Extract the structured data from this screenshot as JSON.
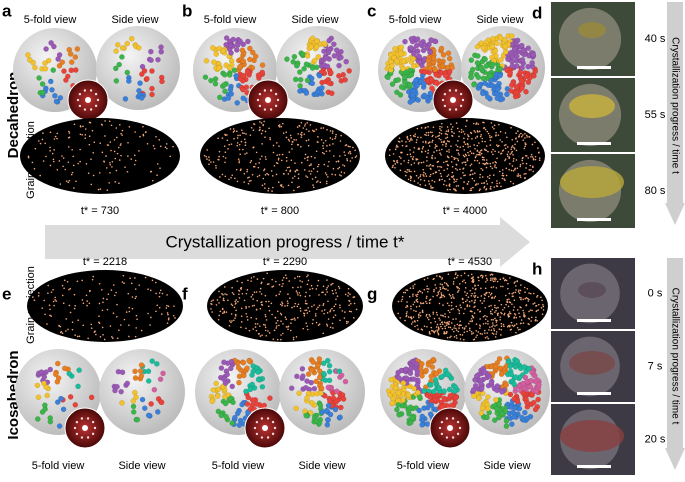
{
  "row_labels": {
    "top": "Decahedron",
    "bottom": "Icosahedron"
  },
  "projection_labels": [
    "Grain projection",
    "Grain projection"
  ],
  "main_arrow": "Crystallization progress / time t*",
  "panels": [
    {
      "letter": "a",
      "views": [
        "5-fold view",
        "Side view"
      ],
      "time": "t* = 730"
    },
    {
      "letter": "b",
      "views": [
        "5-fold view",
        "Side view"
      ],
      "time": "t* = 800"
    },
    {
      "letter": "c",
      "views": [
        "5-fold view",
        "Side view"
      ],
      "time": "t* = 4000"
    },
    {
      "letter": "e",
      "views": [
        "5-fold view",
        "Side view"
      ],
      "time": "t* = 2218"
    },
    {
      "letter": "f",
      "views": [
        "5-fold view",
        "Side view"
      ],
      "time": "t* = 2290"
    },
    {
      "letter": "g",
      "views": [
        "5-fold view",
        "Side view"
      ],
      "time": "t* = 4530"
    }
  ],
  "micro": [
    {
      "letter": "d",
      "times": [
        "40 s",
        "55 s",
        "80 s"
      ],
      "arrow": "Crystallization progress / time t"
    },
    {
      "letter": "h",
      "times": [
        "0 s",
        "7 s",
        "20 s"
      ],
      "arrow": "Crystallization progress / time t"
    }
  ]
}
